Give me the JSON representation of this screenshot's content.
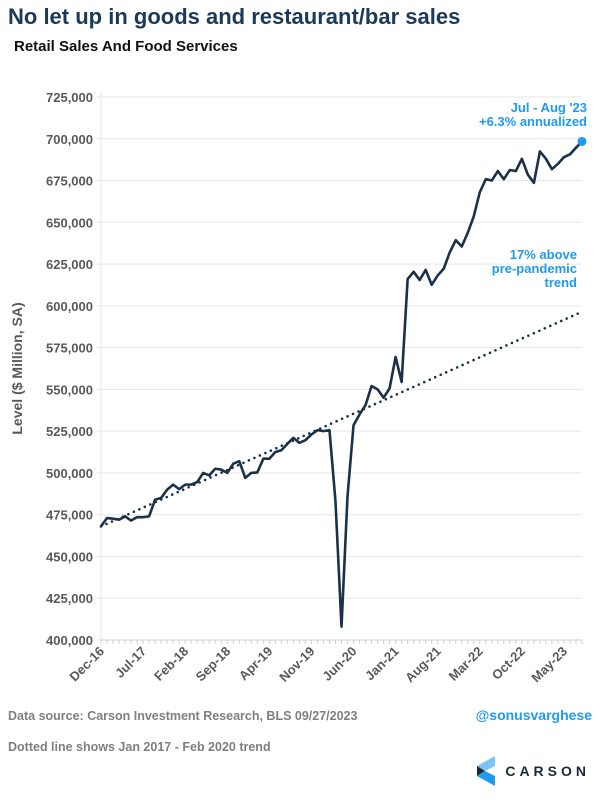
{
  "title": "No let up in goods and restaurant/bar sales",
  "footer": {
    "source": "Data source: Carson Investment Research, BLS   09/27/2023",
    "note": "Dotted line shows Jan 2017 - Feb 2020 trend",
    "handle": "@sonusvarghese",
    "logo_text": "CARSON"
  },
  "colors": {
    "line": "#1b3148",
    "accent": "#1e9bf0",
    "grid": "#e6e6e6",
    "axis_text": "#595959"
  },
  "chart_data": {
    "type": "line",
    "title": "Retail Sales And Food Services",
    "xlabel": "",
    "ylabel": "Level ($ Million, SA)",
    "ylim": [
      400000,
      725000
    ],
    "ytick_step": 25000,
    "yticks": [
      "400,000",
      "425,000",
      "450,000",
      "475,000",
      "500,000",
      "525,000",
      "550,000",
      "575,000",
      "600,000",
      "625,000",
      "650,000",
      "675,000",
      "700,000",
      "725,000"
    ],
    "x_start": "Dec-16",
    "x_end": "Aug-23",
    "xtick_labels": [
      "Dec-16",
      "Jul-17",
      "Feb-18",
      "Sep-18",
      "Apr-19",
      "Nov-19",
      "Jun-20",
      "Jan-21",
      "Aug-21",
      "Mar-22",
      "Oct-22",
      "May-23"
    ],
    "xtick_every_months": 7,
    "grid": true,
    "series": [
      {
        "name": "Retail Sales And Food Services",
        "style": "solid",
        "values": [
          468000,
          473000,
          472600,
          472000,
          474000,
          471500,
          473500,
          473500,
          474000,
          484000,
          485000,
          490000,
          493000,
          490300,
          493000,
          493000,
          494500,
          500000,
          498500,
          502500,
          502000,
          500000,
          505500,
          507000,
          497000,
          500000,
          500300,
          508500,
          508500,
          512500,
          513600,
          517400,
          521000,
          518000,
          519600,
          523000,
          525600,
          525000,
          525600,
          483000,
          408000,
          486000,
          528500,
          535000,
          540600,
          552000,
          550000,
          545000,
          550600,
          569400,
          554400,
          616000,
          620400,
          615500,
          621500,
          612600,
          618200,
          622200,
          632000,
          639300,
          635500,
          643700,
          653600,
          668000,
          675800,
          675000,
          680700,
          675800,
          681300,
          680700,
          688000,
          678500,
          673600,
          692400,
          688000,
          681800,
          685000,
          689000,
          690700,
          694600,
          698400
        ]
      },
      {
        "name": "Jan 2017 - Feb 2020 trend",
        "style": "dotted",
        "start": 468000,
        "end": 596500
      }
    ],
    "annotations": [
      {
        "text": [
          "Jul - Aug '23",
          "+6.3% annualized"
        ],
        "target": "last point"
      },
      {
        "text": [
          "17% above",
          "pre-pandemic",
          "trend"
        ],
        "target": "trend end"
      }
    ]
  }
}
